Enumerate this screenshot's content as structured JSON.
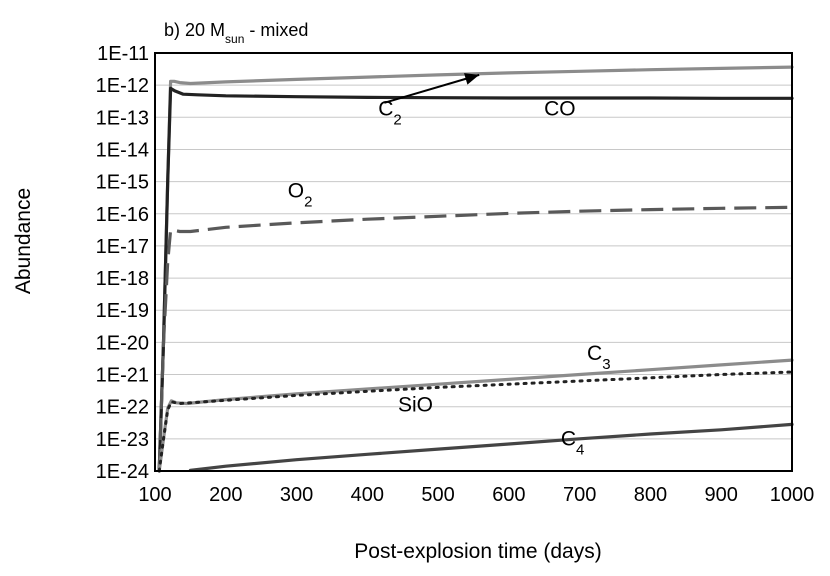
{
  "chart_data": {
    "type": "line",
    "title": "b) 20 M",
    "title_sub": "sun",
    "title_suffix": " - mixed",
    "xlabel": "Post-explosion time (days)",
    "ylabel": "Abundance",
    "xlim": [
      100,
      1000
    ],
    "ylim_exp": [
      -24,
      -11
    ],
    "xticks": [
      100,
      200,
      300,
      400,
      500,
      600,
      700,
      800,
      900,
      1000
    ],
    "yticks": [
      "1E-11",
      "1E-12",
      "1E-13",
      "1E-14",
      "1E-15",
      "1E-16",
      "1E-17",
      "1E-18",
      "1E-19",
      "1E-20",
      "1E-21",
      "1E-22",
      "1E-23",
      "1E-24"
    ],
    "series": [
      {
        "name": "C2",
        "label_main": "C",
        "label_sub": "2",
        "color": "#8c8c8c",
        "dash": "solid",
        "x": [
          106,
          112,
          118,
          122,
          127,
          135,
          150,
          200,
          300,
          400,
          500,
          600,
          700,
          800,
          900,
          1000
        ],
        "y": [
          -24.0,
          -20.0,
          -15.0,
          -11.88,
          -11.88,
          -11.92,
          -11.95,
          -11.9,
          -11.82,
          -11.75,
          -11.68,
          -11.62,
          -11.57,
          -11.52,
          -11.48,
          -11.44
        ]
      },
      {
        "name": "CO",
        "label_main": "CO",
        "label_sub": "",
        "color": "#222222",
        "dash": "solid",
        "x": [
          106,
          112,
          118,
          122,
          128,
          140,
          160,
          200,
          300,
          400,
          500,
          600,
          700,
          800,
          900,
          1000
        ],
        "y": [
          -24.0,
          -20.0,
          -15.0,
          -12.1,
          -12.18,
          -12.28,
          -12.3,
          -12.33,
          -12.36,
          -12.38,
          -12.39,
          -12.4,
          -12.4,
          -12.4,
          -12.41,
          -12.41
        ]
      },
      {
        "name": "O2",
        "label_main": "O",
        "label_sub": "2",
        "color": "#595959",
        "dash": "dashed",
        "x": [
          106,
          112,
          118,
          122,
          135,
          150,
          200,
          300,
          400,
          500,
          600,
          700,
          800,
          900,
          1000
        ],
        "y": [
          -24.0,
          -20.0,
          -17.5,
          -16.5,
          -16.55,
          -16.55,
          -16.42,
          -16.28,
          -16.17,
          -16.08,
          -15.99,
          -15.92,
          -15.87,
          -15.83,
          -15.8
        ]
      },
      {
        "name": "C3",
        "label_main": "C",
        "label_sub": "3",
        "color": "#8c8c8c",
        "dash": "solid",
        "x": [
          106,
          112,
          118,
          123,
          130,
          145,
          200,
          300,
          400,
          500,
          600,
          700,
          800,
          900,
          1000
        ],
        "y": [
          -24.0,
          -23.0,
          -22.05,
          -21.82,
          -21.88,
          -21.9,
          -21.78,
          -21.6,
          -21.45,
          -21.3,
          -21.15,
          -21.0,
          -20.85,
          -20.7,
          -20.55
        ]
      },
      {
        "name": "SiO",
        "label_main": "SiO",
        "label_sub": "",
        "color": "#222222",
        "dash": "dotted",
        "x": [
          106,
          112,
          118,
          123,
          135,
          150,
          200,
          300,
          400,
          500,
          600,
          700,
          800,
          900,
          1000
        ],
        "y": [
          -24.0,
          -23.0,
          -22.1,
          -21.85,
          -21.9,
          -21.88,
          -21.8,
          -21.65,
          -21.52,
          -21.4,
          -21.3,
          -21.2,
          -21.1,
          -21.0,
          -20.92
        ]
      },
      {
        "name": "C4",
        "label_main": "C",
        "label_sub": "4",
        "color": "#444444",
        "dash": "solid",
        "x": [
          150,
          200,
          300,
          400,
          500,
          600,
          700,
          800,
          900,
          1000
        ],
        "y": [
          -23.98,
          -23.85,
          -23.65,
          -23.48,
          -23.32,
          -23.16,
          -23.0,
          -22.85,
          -22.72,
          -22.55
        ]
      }
    ]
  }
}
